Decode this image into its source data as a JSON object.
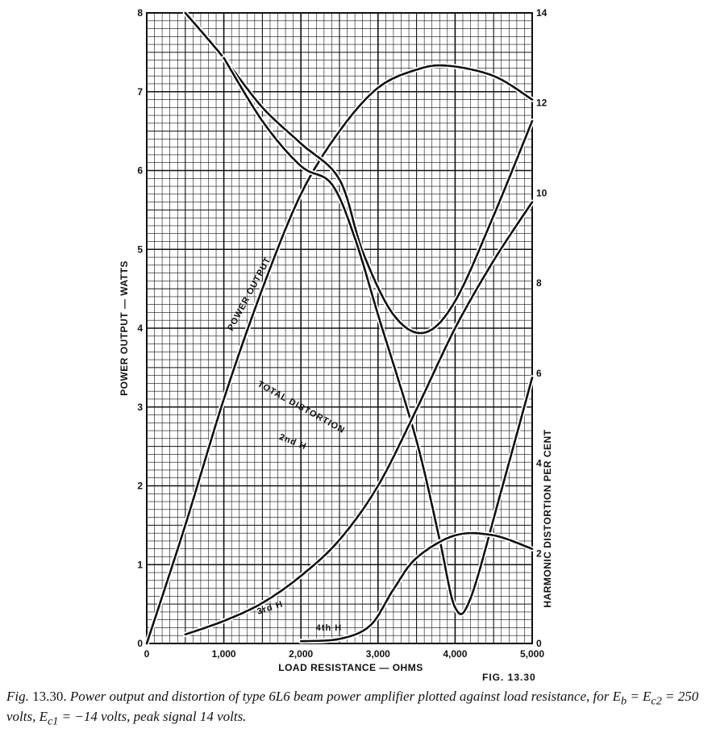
{
  "figure_tag": "FIG. 13.30",
  "caption": {
    "lead": "Fig.",
    "number": "13.30.",
    "text": "Power output and distortion of type 6L6 beam power amplifier plotted against load resistance, for E",
    "rest": " = E",
    "rest2": " = 250 volts, E",
    "rest3": " = −14 volts, peak signal 14 volts.",
    "sub_b": "b",
    "sub_c2": "c2",
    "sub_c1": "c1"
  },
  "chart_data": {
    "type": "line",
    "xlabel": "LOAD RESISTANCE — OHMS",
    "ylabel_left": "POWER OUTPUT — WATTS",
    "ylabel_right": "HARMONIC DISTORTION PER CENT",
    "xlim": [
      0,
      5000
    ],
    "ylim_left": [
      0,
      8
    ],
    "ylim_right": [
      0,
      14
    ],
    "x_ticks": [
      "0",
      "1,000",
      "2,000",
      "3,000",
      "4,000",
      "5,000"
    ],
    "y_ticks_left": [
      "0",
      "1",
      "2",
      "3",
      "4",
      "5",
      "6",
      "7",
      "8"
    ],
    "y_ticks_right": [
      "0",
      "2",
      "4",
      "6",
      "8",
      "10",
      "12",
      "14"
    ],
    "grid": true,
    "series": [
      {
        "name": "POWER OUTPUT",
        "axis": "left",
        "points": [
          [
            0,
            0
          ],
          [
            500,
            1.5
          ],
          [
            1000,
            3.1
          ],
          [
            1500,
            4.5
          ],
          [
            2000,
            5.7
          ],
          [
            2500,
            6.5
          ],
          [
            3000,
            7.05
          ],
          [
            3500,
            7.28
          ],
          [
            3900,
            7.33
          ],
          [
            4500,
            7.2
          ],
          [
            5000,
            6.9
          ]
        ]
      },
      {
        "name": "TOTAL DISTORTION",
        "axis": "right",
        "points": [
          [
            500,
            14
          ],
          [
            1000,
            13
          ],
          [
            1500,
            11.9
          ],
          [
            2000,
            11.1
          ],
          [
            2500,
            10.3
          ],
          [
            2800,
            8.7
          ],
          [
            3200,
            7.3
          ],
          [
            3600,
            6.9
          ],
          [
            4000,
            7.6
          ],
          [
            4500,
            9.5
          ],
          [
            5000,
            11.6
          ]
        ]
      },
      {
        "name": "2nd H",
        "axis": "right",
        "points": [
          [
            1000,
            13
          ],
          [
            1500,
            11.6
          ],
          [
            2000,
            10.6
          ],
          [
            2400,
            10.2
          ],
          [
            2700,
            9
          ],
          [
            3000,
            7.3
          ],
          [
            3500,
            4.5
          ],
          [
            3800,
            2.3
          ],
          [
            4000,
            0.8
          ],
          [
            4200,
            1
          ],
          [
            4600,
            3.4
          ],
          [
            5000,
            5.9
          ]
        ]
      },
      {
        "name": "3rd H",
        "axis": "right",
        "points": [
          [
            500,
            0.2
          ],
          [
            1000,
            0.5
          ],
          [
            1500,
            0.9
          ],
          [
            2000,
            1.5
          ],
          [
            2500,
            2.3
          ],
          [
            3000,
            3.5
          ],
          [
            3500,
            5.2
          ],
          [
            4000,
            7
          ],
          [
            4500,
            8.5
          ],
          [
            5000,
            9.8
          ]
        ]
      },
      {
        "name": "4th H",
        "axis": "right",
        "points": [
          [
            2000,
            0.05
          ],
          [
            2500,
            0.1
          ],
          [
            2900,
            0.4
          ],
          [
            3200,
            1.2
          ],
          [
            3500,
            1.9
          ],
          [
            4000,
            2.4
          ],
          [
            4500,
            2.4
          ],
          [
            5000,
            2.1
          ]
        ]
      }
    ]
  }
}
